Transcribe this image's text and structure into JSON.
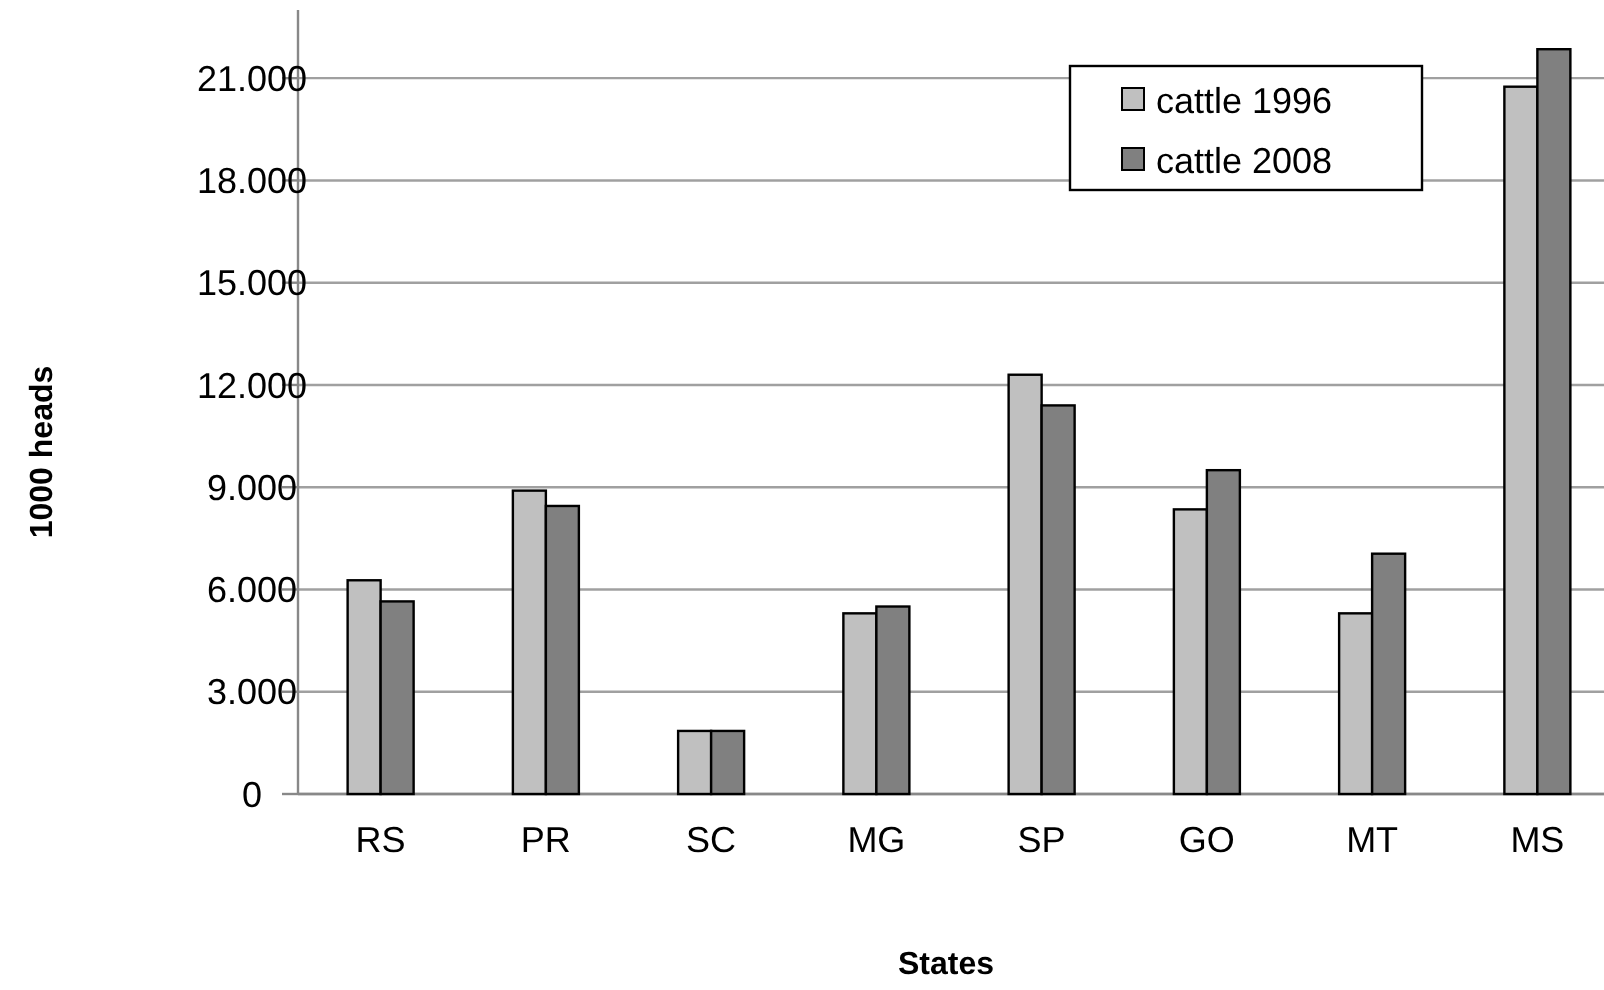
{
  "chart_data": {
    "type": "bar",
    "xlabel": "States",
    "ylabel": "1000 heads",
    "categories": [
      "RS",
      "PR",
      "SC",
      "MG",
      "SP",
      "GO",
      "MT",
      "MS"
    ],
    "series": [
      {
        "name": "cattle 1996",
        "color": "#c0c0c0",
        "values": [
          6270,
          8900,
          1850,
          5300,
          12300,
          8350,
          5300,
          20750
        ]
      },
      {
        "name": "cattle 2008",
        "color": "#808080",
        "values": [
          5650,
          8450,
          1850,
          5500,
          11400,
          9500,
          7050,
          21850
        ]
      }
    ],
    "ylim": [
      0,
      23000
    ],
    "yticks": [
      {
        "value": 0,
        "label": "0"
      },
      {
        "value": 3000,
        "label": "3.000"
      },
      {
        "value": 6000,
        "label": "6.000"
      },
      {
        "value": 9000,
        "label": "9.000"
      },
      {
        "value": 12000,
        "label": "12.000"
      },
      {
        "value": 15000,
        "label": "15.000"
      },
      {
        "value": 18000,
        "label": "18.000"
      },
      {
        "value": 21000,
        "label": "21.000"
      }
    ],
    "grid": "y",
    "legend": "top right"
  }
}
